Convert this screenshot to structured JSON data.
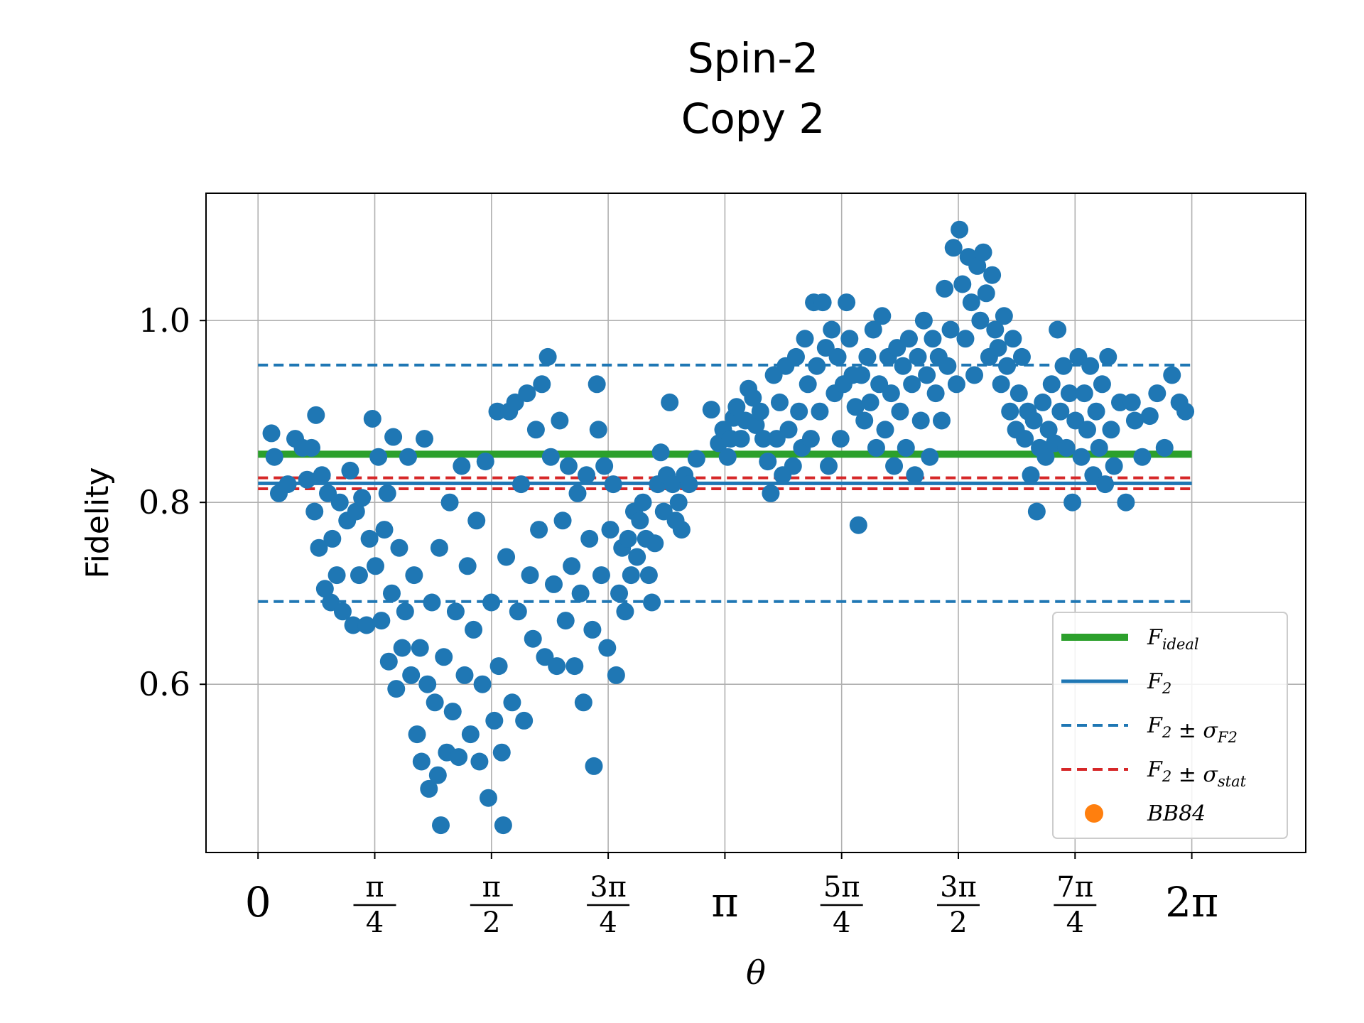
{
  "chart_data": {
    "type": "scatter",
    "title": [
      "Spin-2",
      "Copy 2"
    ],
    "xlabel": "θ",
    "ylabel": "Fidelity",
    "xlim": [
      -0.35,
      7.05
    ],
    "ylim": [
      0.415,
      1.14
    ],
    "grid": true,
    "yticks": [
      {
        "value": 0.6,
        "label": "0.6"
      },
      {
        "value": 0.8,
        "label": "0.8"
      },
      {
        "value": 1.0,
        "label": "1.0"
      }
    ],
    "xticks": [
      {
        "value": 0,
        "num": "0",
        "den": ""
      },
      {
        "value": 0.7854,
        "num": "π",
        "den": "4"
      },
      {
        "value": 1.5708,
        "num": "π",
        "den": "2"
      },
      {
        "value": 2.3562,
        "num": "3π",
        "den": "4"
      },
      {
        "value": 3.1416,
        "num": "π",
        "den": ""
      },
      {
        "value": 3.927,
        "num": "5π",
        "den": "4"
      },
      {
        "value": 4.7124,
        "num": "3π",
        "den": "2"
      },
      {
        "value": 5.4978,
        "num": "7π",
        "den": "4"
      },
      {
        "value": 6.2832,
        "num": "2π",
        "den": ""
      }
    ],
    "hlines": [
      {
        "name": "F_ideal",
        "y": 0.853,
        "color": "#2ca02c",
        "style": "solid"
      },
      {
        "name": "F_2",
        "y": 0.821,
        "color": "#1f77b4",
        "style": "solid"
      },
      {
        "name": "F_2 ± σ_F2 (upper)",
        "y": 0.951,
        "color": "#1f77b4",
        "style": "dashed"
      },
      {
        "name": "F_2 ± σ_F2 (lower)",
        "y": 0.691,
        "color": "#1f77b4",
        "style": "dashed"
      },
      {
        "name": "F_2 ± σ_stat (upper)",
        "y": 0.827,
        "color": "#d62728",
        "style": "dashed"
      },
      {
        "name": "F_2 ± σ_stat (lower)",
        "y": 0.815,
        "color": "#d62728",
        "style": "dashed"
      }
    ],
    "legend": {
      "placement": "lower-right",
      "entries": [
        {
          "label": "F_ideal",
          "color": "#2ca02c",
          "marker": "solid-line"
        },
        {
          "label": "F_2",
          "color": "#1f77b4",
          "marker": "solid-line"
        },
        {
          "label": "F_2 ± σ_F2",
          "color": "#1f77b4",
          "marker": "dashed-line"
        },
        {
          "label": "F_2 ± σ_stat",
          "color": "#d62728",
          "marker": "dashed-line"
        },
        {
          "label": "BB84",
          "color": "#ff7f0e",
          "marker": "dot"
        }
      ]
    },
    "series": [
      {
        "color": "#1f77b4",
        "points": [
          [
            0.09,
            0.876
          ],
          [
            0.11,
            0.85
          ],
          [
            0.14,
            0.81
          ],
          [
            0.2,
            0.82
          ],
          [
            0.25,
            0.87
          ],
          [
            0.3,
            0.86
          ],
          [
            0.33,
            0.825
          ],
          [
            0.36,
            0.86
          ],
          [
            0.38,
            0.79
          ],
          [
            0.39,
            0.896
          ],
          [
            0.41,
            0.75
          ],
          [
            0.43,
            0.83
          ],
          [
            0.45,
            0.705
          ],
          [
            0.47,
            0.81
          ],
          [
            0.49,
            0.69
          ],
          [
            0.5,
            0.76
          ],
          [
            0.53,
            0.72
          ],
          [
            0.55,
            0.8
          ],
          [
            0.57,
            0.68
          ],
          [
            0.6,
            0.78
          ],
          [
            0.62,
            0.835
          ],
          [
            0.64,
            0.665
          ],
          [
            0.66,
            0.79
          ],
          [
            0.68,
            0.72
          ],
          [
            0.7,
            0.805
          ],
          [
            0.73,
            0.665
          ],
          [
            0.75,
            0.76
          ],
          [
            0.77,
            0.892
          ],
          [
            0.79,
            0.73
          ],
          [
            0.81,
            0.85
          ],
          [
            0.83,
            0.67
          ],
          [
            0.85,
            0.77
          ],
          [
            0.87,
            0.81
          ],
          [
            0.88,
            0.625
          ],
          [
            0.9,
            0.7
          ],
          [
            0.91,
            0.872
          ],
          [
            0.93,
            0.595
          ],
          [
            0.95,
            0.75
          ],
          [
            0.97,
            0.64
          ],
          [
            0.99,
            0.68
          ],
          [
            1.01,
            0.85
          ],
          [
            1.03,
            0.61
          ],
          [
            1.05,
            0.72
          ],
          [
            1.07,
            0.545
          ],
          [
            1.09,
            0.64
          ],
          [
            1.1,
            0.515
          ],
          [
            1.12,
            0.87
          ],
          [
            1.14,
            0.6
          ],
          [
            1.15,
            0.485
          ],
          [
            1.17,
            0.69
          ],
          [
            1.19,
            0.58
          ],
          [
            1.21,
            0.5
          ],
          [
            1.22,
            0.75
          ],
          [
            1.23,
            0.445
          ],
          [
            1.25,
            0.63
          ],
          [
            1.27,
            0.525
          ],
          [
            1.29,
            0.8
          ],
          [
            1.31,
            0.57
          ],
          [
            1.33,
            0.68
          ],
          [
            1.35,
            0.52
          ],
          [
            1.37,
            0.84
          ],
          [
            1.39,
            0.61
          ],
          [
            1.41,
            0.73
          ],
          [
            1.43,
            0.545
          ],
          [
            1.45,
            0.66
          ],
          [
            1.47,
            0.78
          ],
          [
            1.49,
            0.515
          ],
          [
            1.51,
            0.6
          ],
          [
            1.53,
            0.845
          ],
          [
            1.55,
            0.475
          ],
          [
            1.57,
            0.69
          ],
          [
            1.59,
            0.56
          ],
          [
            1.61,
            0.9
          ],
          [
            1.62,
            0.62
          ],
          [
            1.64,
            0.525
          ],
          [
            1.65,
            0.445
          ],
          [
            1.67,
            0.74
          ],
          [
            1.69,
            0.9
          ],
          [
            1.71,
            0.58
          ],
          [
            1.73,
            0.91
          ],
          [
            1.75,
            0.68
          ],
          [
            1.77,
            0.82
          ],
          [
            1.79,
            0.56
          ],
          [
            1.81,
            0.92
          ],
          [
            1.83,
            0.72
          ],
          [
            1.85,
            0.65
          ],
          [
            1.87,
            0.88
          ],
          [
            1.89,
            0.77
          ],
          [
            1.91,
            0.93
          ],
          [
            1.93,
            0.63
          ],
          [
            1.95,
            0.96
          ],
          [
            1.97,
            0.85
          ],
          [
            1.99,
            0.71
          ],
          [
            2.01,
            0.62
          ],
          [
            2.03,
            0.89
          ],
          [
            2.05,
            0.78
          ],
          [
            2.07,
            0.67
          ],
          [
            2.09,
            0.84
          ],
          [
            2.11,
            0.73
          ],
          [
            2.13,
            0.62
          ],
          [
            2.15,
            0.81
          ],
          [
            2.17,
            0.7
          ],
          [
            2.19,
            0.58
          ],
          [
            2.21,
            0.83
          ],
          [
            2.23,
            0.76
          ],
          [
            2.25,
            0.66
          ],
          [
            2.26,
            0.51
          ],
          [
            2.28,
            0.93
          ],
          [
            2.29,
            0.88
          ],
          [
            2.31,
            0.72
          ],
          [
            2.33,
            0.84
          ],
          [
            2.35,
            0.64
          ],
          [
            2.37,
            0.77
          ],
          [
            2.39,
            0.82
          ],
          [
            2.41,
            0.61
          ],
          [
            2.43,
            0.7
          ],
          [
            2.45,
            0.75
          ],
          [
            2.47,
            0.68
          ],
          [
            2.49,
            0.76
          ],
          [
            2.51,
            0.72
          ],
          [
            2.53,
            0.79
          ],
          [
            2.55,
            0.74
          ],
          [
            2.57,
            0.78
          ],
          [
            2.59,
            0.8
          ],
          [
            2.61,
            0.76
          ],
          [
            2.63,
            0.72
          ],
          [
            2.65,
            0.69
          ],
          [
            2.67,
            0.755
          ],
          [
            2.69,
            0.82
          ],
          [
            2.71,
            0.855
          ],
          [
            2.73,
            0.79
          ],
          [
            2.75,
            0.83
          ],
          [
            2.77,
            0.91
          ],
          [
            2.79,
            0.82
          ],
          [
            2.81,
            0.78
          ],
          [
            2.83,
            0.8
          ],
          [
            2.85,
            0.77
          ],
          [
            2.87,
            0.83
          ],
          [
            2.9,
            0.82
          ],
          [
            2.95,
            0.848
          ],
          [
            3.05,
            0.902
          ],
          [
            3.1,
            0.865
          ],
          [
            3.13,
            0.88
          ],
          [
            3.16,
            0.85
          ],
          [
            3.18,
            0.87
          ],
          [
            3.2,
            0.893
          ],
          [
            3.22,
            0.905
          ],
          [
            3.25,
            0.87
          ],
          [
            3.28,
            0.89
          ],
          [
            3.3,
            0.925
          ],
          [
            3.33,
            0.915
          ],
          [
            3.35,
            0.885
          ],
          [
            3.38,
            0.9
          ],
          [
            3.4,
            0.87
          ],
          [
            3.43,
            0.845
          ],
          [
            3.45,
            0.81
          ],
          [
            3.47,
            0.94
          ],
          [
            3.49,
            0.87
          ],
          [
            3.51,
            0.91
          ],
          [
            3.53,
            0.83
          ],
          [
            3.55,
            0.95
          ],
          [
            3.57,
            0.88
          ],
          [
            3.6,
            0.84
          ],
          [
            3.62,
            0.96
          ],
          [
            3.64,
            0.9
          ],
          [
            3.66,
            0.86
          ],
          [
            3.68,
            0.98
          ],
          [
            3.7,
            0.93
          ],
          [
            3.72,
            0.87
          ],
          [
            3.74,
            1.02
          ],
          [
            3.76,
            0.95
          ],
          [
            3.78,
            0.9
          ],
          [
            3.8,
            1.02
          ],
          [
            3.82,
            0.97
          ],
          [
            3.84,
            0.84
          ],
          [
            3.86,
            0.99
          ],
          [
            3.88,
            0.92
          ],
          [
            3.9,
            0.96
          ],
          [
            3.92,
            0.87
          ],
          [
            3.94,
            0.93
          ],
          [
            3.96,
            1.02
          ],
          [
            3.98,
            0.98
          ],
          [
            4.0,
            0.94
          ],
          [
            4.02,
            0.905
          ],
          [
            4.04,
            0.775
          ],
          [
            4.06,
            0.94
          ],
          [
            4.08,
            0.89
          ],
          [
            4.1,
            0.96
          ],
          [
            4.12,
            0.91
          ],
          [
            4.14,
            0.99
          ],
          [
            4.16,
            0.86
          ],
          [
            4.18,
            0.93
          ],
          [
            4.2,
            1.005
          ],
          [
            4.22,
            0.88
          ],
          [
            4.24,
            0.96
          ],
          [
            4.26,
            0.92
          ],
          [
            4.28,
            0.84
          ],
          [
            4.3,
            0.97
          ],
          [
            4.32,
            0.9
          ],
          [
            4.34,
            0.95
          ],
          [
            4.36,
            0.86
          ],
          [
            4.38,
            0.98
          ],
          [
            4.4,
            0.93
          ],
          [
            4.42,
            0.83
          ],
          [
            4.44,
            0.96
          ],
          [
            4.46,
            0.89
          ],
          [
            4.48,
            1.0
          ],
          [
            4.5,
            0.94
          ],
          [
            4.52,
            0.85
          ],
          [
            4.54,
            0.98
          ],
          [
            4.56,
            0.92
          ],
          [
            4.58,
            0.96
          ],
          [
            4.6,
            0.89
          ],
          [
            4.62,
            1.035
          ],
          [
            4.64,
            0.95
          ],
          [
            4.66,
            0.99
          ],
          [
            4.68,
            1.08
          ],
          [
            4.7,
            0.93
          ],
          [
            4.72,
            1.1
          ],
          [
            4.74,
            1.04
          ],
          [
            4.76,
            0.98
          ],
          [
            4.78,
            1.07
          ],
          [
            4.8,
            1.02
          ],
          [
            4.82,
            0.94
          ],
          [
            4.84,
            1.06
          ],
          [
            4.86,
            1.0
          ],
          [
            4.88,
            1.075
          ],
          [
            4.9,
            1.03
          ],
          [
            4.92,
            0.96
          ],
          [
            4.94,
            1.05
          ],
          [
            4.96,
            0.99
          ],
          [
            4.98,
            0.97
          ],
          [
            5.0,
            0.93
          ],
          [
            5.02,
            1.005
          ],
          [
            5.04,
            0.95
          ],
          [
            5.06,
            0.9
          ],
          [
            5.08,
            0.98
          ],
          [
            5.1,
            0.88
          ],
          [
            5.12,
            0.92
          ],
          [
            5.14,
            0.96
          ],
          [
            5.16,
            0.87
          ],
          [
            5.18,
            0.9
          ],
          [
            5.2,
            0.83
          ],
          [
            5.22,
            0.89
          ],
          [
            5.24,
            0.79
          ],
          [
            5.26,
            0.86
          ],
          [
            5.28,
            0.91
          ],
          [
            5.3,
            0.85
          ],
          [
            5.32,
            0.88
          ],
          [
            5.34,
            0.93
          ],
          [
            5.36,
            0.865
          ],
          [
            5.38,
            0.99
          ],
          [
            5.4,
            0.9
          ],
          [
            5.42,
            0.95
          ],
          [
            5.44,
            0.86
          ],
          [
            5.46,
            0.92
          ],
          [
            5.48,
            0.8
          ],
          [
            5.5,
            0.89
          ],
          [
            5.52,
            0.96
          ],
          [
            5.54,
            0.85
          ],
          [
            5.56,
            0.92
          ],
          [
            5.58,
            0.88
          ],
          [
            5.6,
            0.95
          ],
          [
            5.62,
            0.83
          ],
          [
            5.64,
            0.9
          ],
          [
            5.66,
            0.86
          ],
          [
            5.68,
            0.93
          ],
          [
            5.7,
            0.82
          ],
          [
            5.72,
            0.96
          ],
          [
            5.74,
            0.88
          ],
          [
            5.76,
            0.84
          ],
          [
            5.8,
            0.91
          ],
          [
            5.84,
            0.8
          ],
          [
            5.88,
            0.91
          ],
          [
            5.9,
            0.89
          ],
          [
            5.95,
            0.85
          ],
          [
            6.0,
            0.895
          ],
          [
            6.05,
            0.92
          ],
          [
            6.1,
            0.86
          ],
          [
            6.15,
            0.94
          ],
          [
            6.2,
            0.91
          ],
          [
            6.24,
            0.9
          ]
        ]
      }
    ]
  }
}
